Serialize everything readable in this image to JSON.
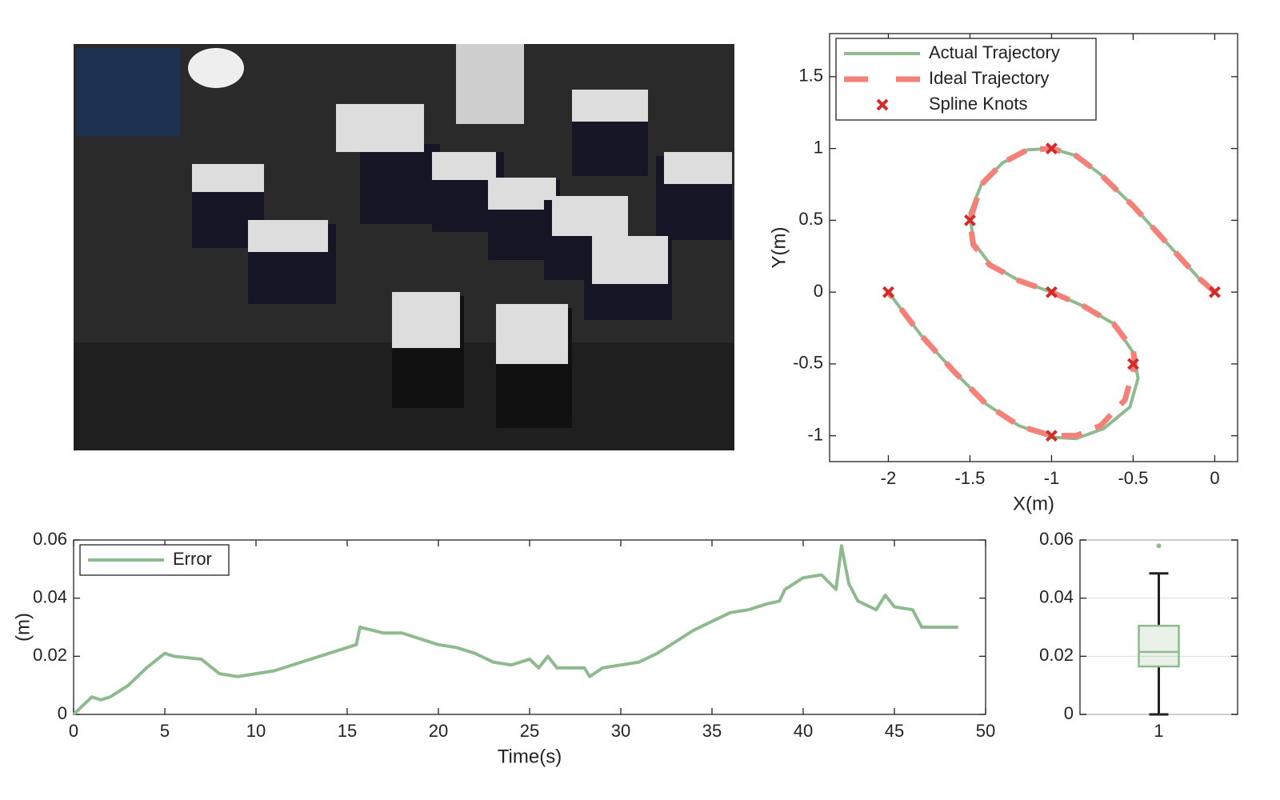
{
  "chart_data": [
    {
      "type": "line",
      "xlabel": "X(m)",
      "ylabel": "Y(m)",
      "xlim": [
        -2.36,
        0.14
      ],
      "ylim": [
        -1.18,
        1.8
      ],
      "xticks": [
        -2,
        -1.5,
        -1,
        -0.5,
        0
      ],
      "yticks": [
        -1,
        -0.5,
        0,
        0.5,
        1,
        1.5
      ],
      "legend": "upper left",
      "series": [
        {
          "name": "Actual Trajectory",
          "color": "#8fb98f",
          "line_style": "solid",
          "x": [
            0,
            -0.1,
            -0.3,
            -0.5,
            -0.7,
            -0.85,
            -1,
            -1.15,
            -1.3,
            -1.43,
            -1.5,
            -1.48,
            -1.38,
            -1.2,
            -1,
            -0.8,
            -0.62,
            -0.5,
            -0.47,
            -0.52,
            -0.68,
            -0.85,
            -1,
            -1.2,
            -1.4,
            -1.6,
            -1.8,
            -2
          ],
          "values": [
            0,
            0.1,
            0.35,
            0.6,
            0.82,
            0.95,
            1,
            0.99,
            0.9,
            0.75,
            0.55,
            0.35,
            0.2,
            0.08,
            0,
            -0.1,
            -0.22,
            -0.42,
            -0.6,
            -0.8,
            -0.95,
            -1.02,
            -1.01,
            -0.93,
            -0.78,
            -0.55,
            -0.3,
            0
          ]
        },
        {
          "name": "Ideal Trajectory",
          "color": "#f4807a",
          "line_style": "dashed",
          "x": [
            0,
            -0.1,
            -0.3,
            -0.5,
            -0.7,
            -0.85,
            -1,
            -1.15,
            -1.3,
            -1.43,
            -1.5,
            -1.48,
            -1.38,
            -1.2,
            -1,
            -0.8,
            -0.62,
            -0.5,
            -0.49,
            -0.55,
            -0.7,
            -0.85,
            -1,
            -1.2,
            -1.4,
            -1.6,
            -1.8,
            -2
          ],
          "values": [
            0,
            0.1,
            0.35,
            0.6,
            0.82,
            0.95,
            1,
            0.99,
            0.9,
            0.75,
            0.5,
            0.33,
            0.19,
            0.08,
            0,
            -0.1,
            -0.22,
            -0.4,
            -0.5,
            -0.75,
            -0.93,
            -1,
            -1,
            -0.93,
            -0.78,
            -0.55,
            -0.3,
            0
          ]
        },
        {
          "name": "Spline Knots",
          "color": "#d42a2a",
          "line_style": "none",
          "marker": "x",
          "x": [
            0,
            -1,
            -1.5,
            -1,
            -0.5,
            -1,
            -2
          ],
          "values": [
            0,
            1,
            0.5,
            0,
            -0.5,
            -1,
            0
          ]
        }
      ]
    },
    {
      "type": "line",
      "xlabel": "Time(s)",
      "ylabel": "(m)",
      "xlim": [
        0,
        50
      ],
      "ylim": [
        0,
        0.06
      ],
      "xticks": [
        0,
        5,
        10,
        15,
        20,
        25,
        30,
        35,
        40,
        45,
        50
      ],
      "yticks": [
        0,
        0.02,
        0.04,
        0.06
      ],
      "legend": "upper left",
      "series": [
        {
          "name": "Error",
          "color": "#8fb98f",
          "line_style": "solid",
          "x": [
            0,
            0.5,
            1,
            1.5,
            2,
            3,
            4,
            5,
            5.5,
            7,
            8,
            9,
            10,
            11,
            12,
            13,
            14,
            15,
            15.5,
            15.7,
            17,
            18,
            19,
            20,
            21,
            22,
            23,
            24,
            25,
            25.5,
            26,
            26.5,
            28,
            28.3,
            29,
            30,
            31,
            32,
            33,
            34,
            35,
            36,
            37,
            38,
            38.7,
            39,
            40,
            41,
            41.8,
            42.1,
            42.5,
            43,
            44,
            44.5,
            45,
            46,
            46.5,
            48.5
          ],
          "values": [
            0,
            0.003,
            0.006,
            0.005,
            0.006,
            0.01,
            0.016,
            0.021,
            0.02,
            0.019,
            0.014,
            0.013,
            0.014,
            0.015,
            0.017,
            0.019,
            0.021,
            0.023,
            0.024,
            0.03,
            0.028,
            0.028,
            0.026,
            0.024,
            0.023,
            0.021,
            0.018,
            0.017,
            0.019,
            0.016,
            0.02,
            0.016,
            0.016,
            0.013,
            0.016,
            0.017,
            0.018,
            0.021,
            0.025,
            0.029,
            0.032,
            0.035,
            0.036,
            0.038,
            0.039,
            0.043,
            0.047,
            0.048,
            0.043,
            0.058,
            0.045,
            0.039,
            0.036,
            0.041,
            0.037,
            0.036,
            0.03,
            0.03
          ]
        }
      ]
    },
    {
      "type": "box",
      "categories": [
        "1"
      ],
      "color": "#8fb98f",
      "ylim": [
        0,
        0.06
      ],
      "yticks": [
        0,
        0.02,
        0.04,
        0.06
      ],
      "grid": true,
      "min": 0,
      "q1": 0.0165,
      "median": 0.0215,
      "q3": 0.0305,
      "max": 0.0485,
      "outliers": [
        0.058
      ]
    }
  ]
}
